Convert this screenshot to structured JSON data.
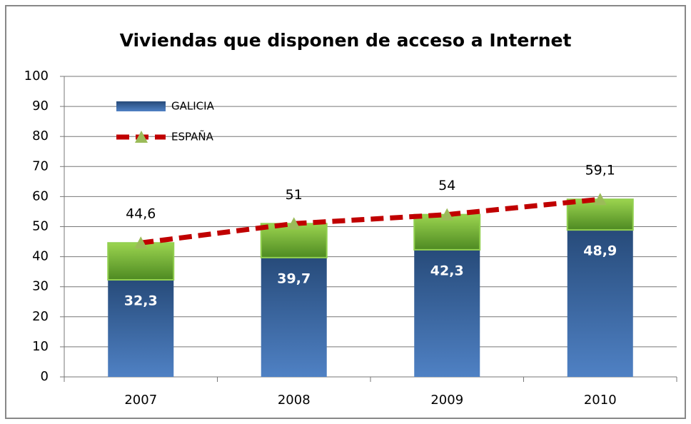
{
  "chart_data": {
    "type": "combo",
    "title": "Viviendas que disponen de acceso a Internet",
    "categories": [
      "2007",
      "2008",
      "2009",
      "2010"
    ],
    "series": [
      {
        "name": "GALICIA",
        "type": "bar",
        "color": "#4f81bd",
        "values": [
          32.3,
          39.7,
          42.3,
          48.9
        ],
        "value_labels": [
          "32,3",
          "39,7",
          "42,3",
          "48,9"
        ]
      },
      {
        "name": "ESPAÑA",
        "type": "line",
        "color": "#c00000",
        "marker_color": "#9bbb59",
        "values": [
          44.6,
          51,
          54,
          59.1
        ],
        "value_labels": [
          "44,6",
          "51",
          "54",
          "59,1"
        ]
      }
    ],
    "ylim": [
      0,
      100
    ],
    "yticks": [
      0,
      10,
      20,
      30,
      40,
      50,
      60,
      70,
      80,
      90,
      100
    ],
    "grid": true,
    "legend": "top-left"
  }
}
